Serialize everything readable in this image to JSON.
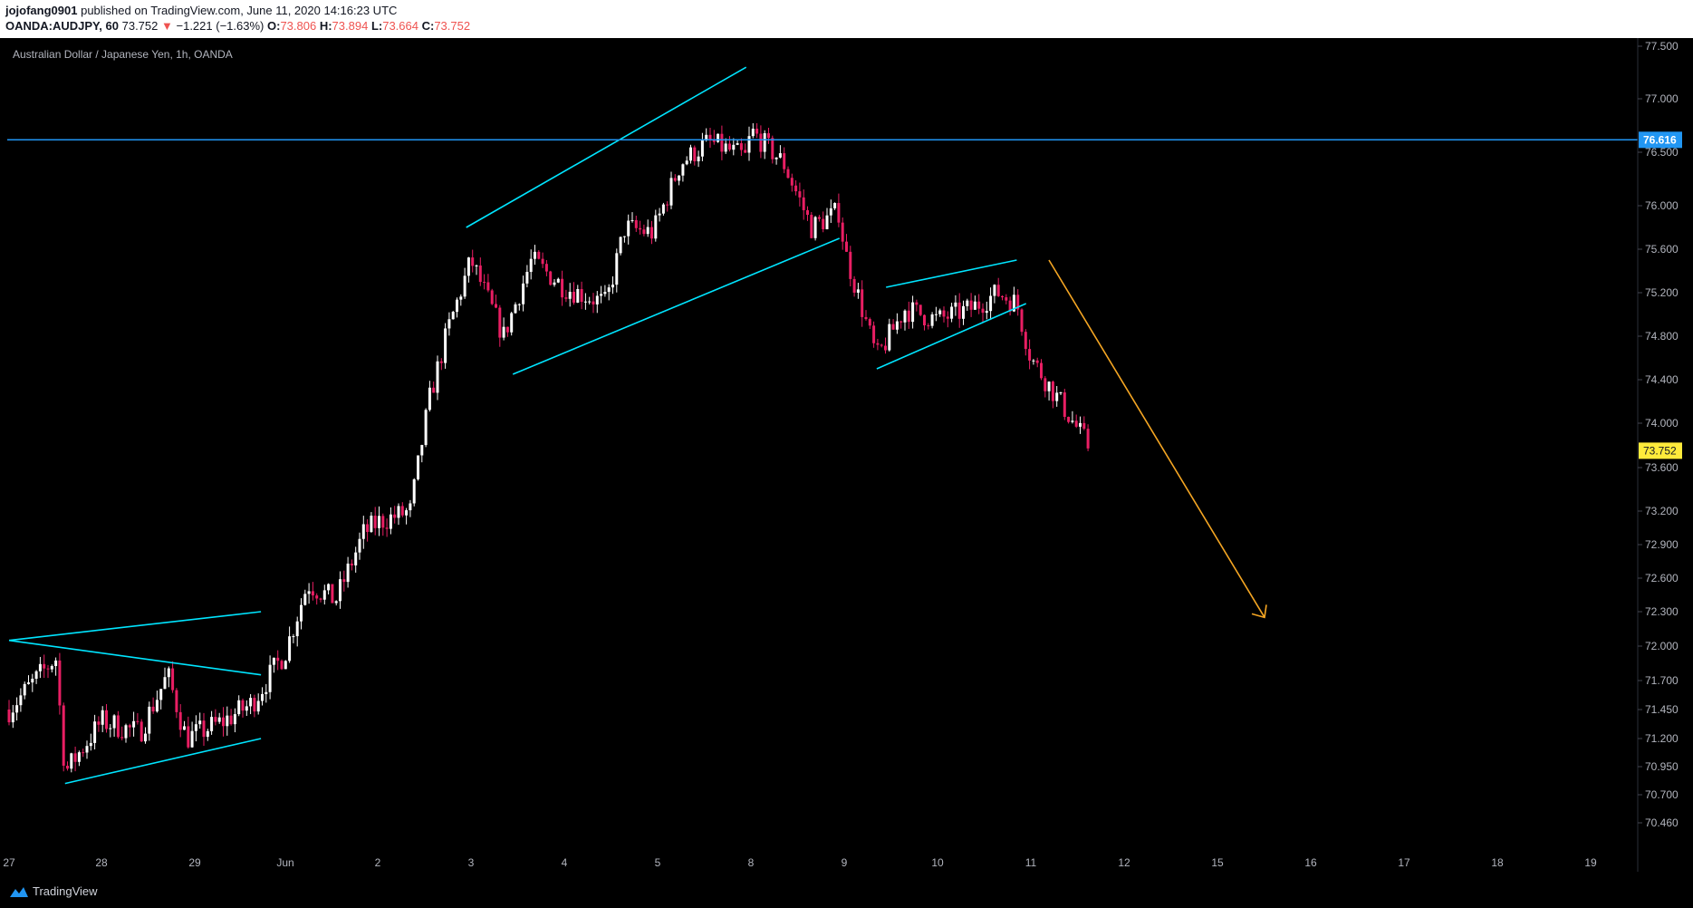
{
  "header": {
    "username": "jojofang0901",
    "published_text": "published on TradingView.com, June 11, 2020 14:16:23 UTC",
    "symbol": "OANDA:AUDJPY, 60",
    "last_price": "73.752",
    "change": "−1.221 (−1.63%)",
    "open_label": "O:",
    "open": "73.806",
    "high_label": "H:",
    "high": "73.894",
    "low_label": "L:",
    "low": "73.664",
    "close_label": "C:",
    "close": "73.752"
  },
  "chart_data": {
    "type": "candlestick",
    "title": "Australian Dollar / Japanese Yen, 1h, OANDA",
    "x_ticks": [
      "27",
      "28",
      "29",
      "Jun",
      "2",
      "3",
      "4",
      "5",
      "8",
      "9",
      "10",
      "11",
      "12",
      "15",
      "16",
      "17",
      "18",
      "19"
    ],
    "y_ticks": [
      77.5,
      77.0,
      76.5,
      76.0,
      75.6,
      75.2,
      74.8,
      74.4,
      74.0,
      73.6,
      73.2,
      72.9,
      72.6,
      72.3,
      72.0,
      71.7,
      71.45,
      71.2,
      70.95,
      70.7,
      70.46
    ],
    "y_tick_labels": [
      "77.500",
      "77.000",
      "76.500",
      "76.000",
      "75.600",
      "75.200",
      "74.800",
      "74.400",
      "74.000",
      "73.600",
      "73.200",
      "72.900",
      "72.600",
      "72.300",
      "72.000",
      "71.700",
      "71.450",
      "71.200",
      "70.950",
      "70.700",
      "70.460"
    ],
    "horizontal_line": {
      "value": 76.616,
      "label": "76.616",
      "color": "#2196f3"
    },
    "last_price_label": {
      "value": 73.752,
      "label": "73.752",
      "color": "#ffeb3b"
    },
    "close_path": [
      [
        "27",
        71.45
      ],
      [
        "27.5",
        71.9
      ],
      [
        "27.6",
        70.9
      ],
      [
        "28",
        71.35
      ],
      [
        "28.4",
        71.25
      ],
      [
        "28.7",
        71.75
      ],
      [
        "28.9",
        71.2
      ],
      [
        "29.3",
        71.35
      ],
      [
        "29.6",
        71.5
      ],
      [
        "Jun",
        71.95
      ],
      [
        "1.2",
        72.55
      ],
      [
        "1.5",
        72.4
      ],
      [
        "1.8",
        73.0
      ],
      [
        "2",
        73.1
      ],
      [
        "2.3",
        73.2
      ],
      [
        "2.5",
        74.2
      ],
      [
        "2.7",
        74.85
      ],
      [
        "3",
        75.5
      ],
      [
        "3.3",
        74.8
      ],
      [
        "3.6",
        75.5
      ],
      [
        "4",
        75.25
      ],
      [
        "4.4",
        75.1
      ],
      [
        "4.6",
        75.8
      ],
      [
        "4.9",
        75.75
      ],
      [
        "5.2",
        76.4
      ],
      [
        "5.5",
        76.6
      ],
      [
        "5.9",
        76.45
      ],
      [
        "8",
        76.7
      ],
      [
        "8.3",
        76.4
      ],
      [
        "8.6",
        75.8
      ],
      [
        "8.9",
        75.95
      ],
      [
        "9",
        75.6
      ],
      [
        "9.3",
        74.6
      ],
      [
        "9.6",
        75.05
      ],
      [
        "10",
        74.95
      ],
      [
        "10.3",
        75.05
      ],
      [
        "10.6",
        75.2
      ],
      [
        "10.8",
        75.1
      ],
      [
        "11",
        74.6
      ],
      [
        "11.3",
        74.15
      ],
      [
        "11.6",
        73.75
      ]
    ],
    "candle_colors": {
      "up": "#ffffff",
      "down": "#e91e63"
    },
    "drawings": {
      "trendline_color": "#00e5ff",
      "forecast_arrow": {
        "color": "#f5a623",
        "from": [
          "11",
          75.5
        ],
        "to": [
          "15.4",
          72.25
        ]
      }
    },
    "grid": false
  },
  "footer": {
    "brand": "TradingView"
  }
}
